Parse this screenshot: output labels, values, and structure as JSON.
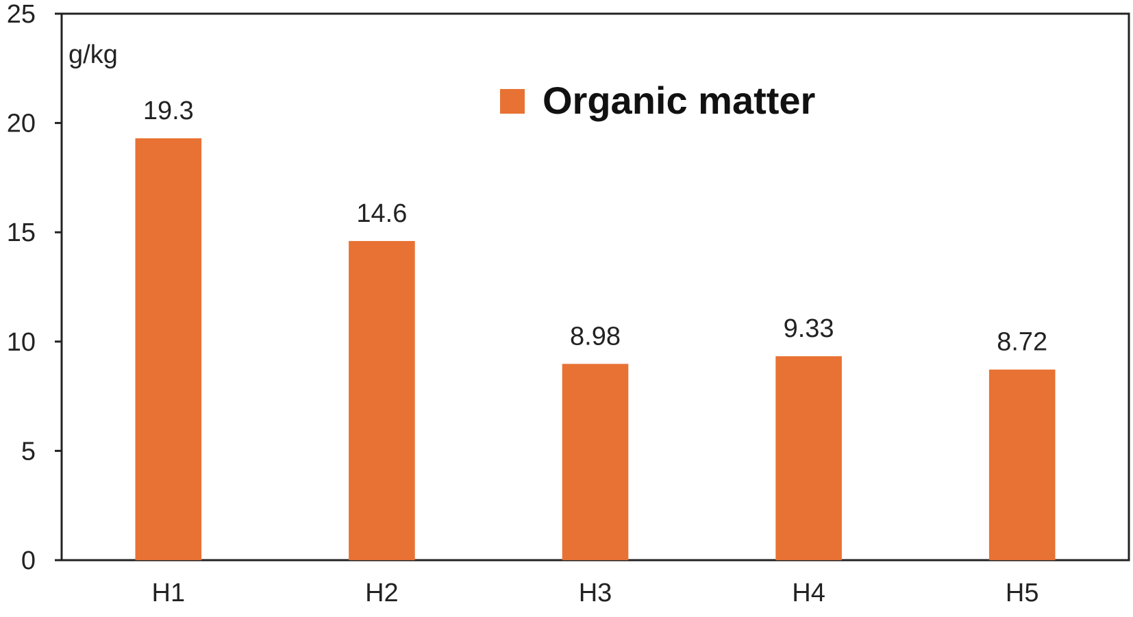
{
  "chart_data": {
    "type": "bar",
    "categories": [
      "H1",
      "H2",
      "H3",
      "H4",
      "H5"
    ],
    "series": [
      {
        "name": "Organic matter",
        "values": [
          19.3,
          14.6,
          8.98,
          9.33,
          8.72
        ],
        "data_labels": [
          "19.3",
          "14.6",
          "8.98",
          "9.33",
          "8.72"
        ],
        "color": "#E87233"
      }
    ],
    "title": "",
    "xlabel": "",
    "ylabel": "g/kg",
    "ylim": [
      0,
      25
    ],
    "yticks": [
      0,
      5,
      10,
      15,
      20,
      25
    ],
    "ytick_labels": [
      "0",
      "5",
      "10",
      "15",
      "20",
      "25"
    ],
    "grid": false,
    "legend_position": "top-center"
  }
}
